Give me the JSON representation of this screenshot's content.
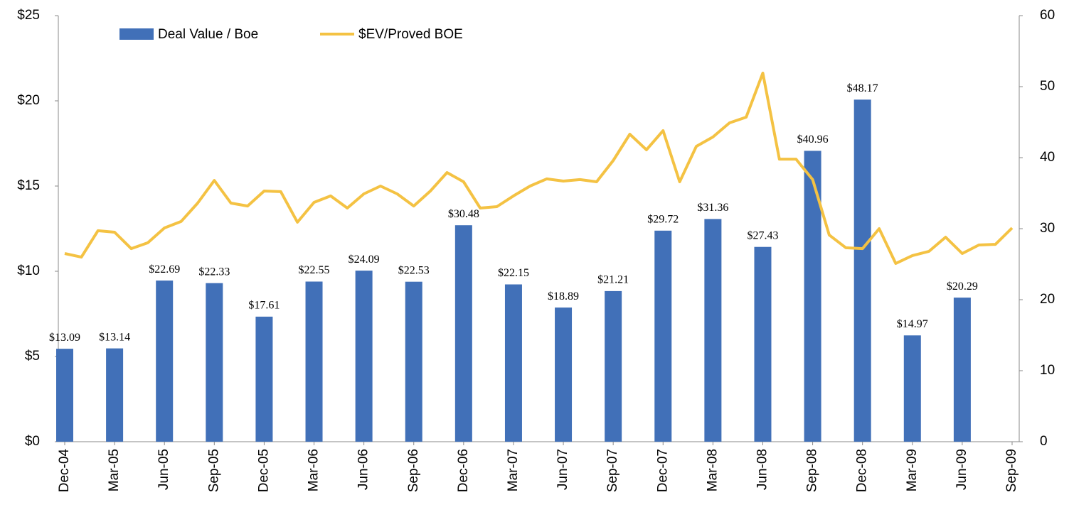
{
  "chart_data": {
    "type": "bar",
    "categories": [
      "Dec-04",
      null,
      null,
      "Mar-05",
      null,
      null,
      "Jun-05",
      null,
      null,
      "Sep-05",
      null,
      null,
      "Dec-05",
      null,
      null,
      "Mar-06",
      null,
      null,
      "Jun-06",
      null,
      null,
      "Sep-06",
      null,
      null,
      "Dec-06",
      null,
      null,
      "Mar-07",
      null,
      null,
      "Jun-07",
      null,
      null,
      "Sep-07",
      null,
      null,
      "Dec-07",
      null,
      null,
      "Mar-08",
      null,
      null,
      "Jun-08",
      null,
      null,
      "Sep-08",
      null,
      null,
      "Dec-08",
      null,
      null,
      "Mar-09",
      null,
      null,
      "Jun-09",
      null,
      null,
      "Sep-09"
    ],
    "series": [
      {
        "name": "Deal Value / Boe",
        "type": "bar",
        "axis": "y2",
        "color": "#4170b8",
        "values": [
          13.09,
          null,
          null,
          13.14,
          null,
          null,
          22.69,
          null,
          null,
          22.33,
          null,
          null,
          17.61,
          null,
          null,
          22.55,
          null,
          null,
          24.09,
          null,
          null,
          22.53,
          null,
          null,
          30.48,
          null,
          null,
          22.15,
          null,
          null,
          18.89,
          null,
          null,
          21.21,
          null,
          null,
          29.72,
          null,
          null,
          31.36,
          null,
          null,
          27.43,
          null,
          null,
          40.96,
          null,
          null,
          48.17,
          null,
          null,
          14.97,
          null,
          null,
          20.29,
          null,
          null,
          null
        ],
        "value_labels": [
          "$13.09",
          null,
          null,
          "$13.14",
          null,
          null,
          "$22.69",
          null,
          null,
          "$22.33",
          null,
          null,
          "$17.61",
          null,
          null,
          "$22.55",
          null,
          null,
          "$24.09",
          null,
          null,
          "$22.53",
          null,
          null,
          "$30.48",
          null,
          null,
          "$22.15",
          null,
          null,
          "$18.89",
          null,
          null,
          "$21.21",
          null,
          null,
          "$29.72",
          null,
          null,
          "$31.36",
          null,
          null,
          "$27.43",
          null,
          null,
          "$40.96",
          null,
          null,
          "$48.17",
          null,
          null,
          "$14.97",
          null,
          null,
          "$20.29",
          null,
          null,
          null
        ]
      },
      {
        "name": "$EV/Proved BOE",
        "type": "line",
        "color": "#f4c243",
        "values": [
          11.04,
          10.83,
          12.38,
          12.29,
          11.33,
          11.67,
          12.54,
          12.92,
          14.0,
          15.33,
          14.0,
          13.83,
          14.71,
          14.67,
          12.88,
          14.04,
          14.42,
          13.71,
          14.54,
          15.0,
          14.54,
          13.83,
          14.71,
          15.79,
          15.25,
          13.71,
          13.79,
          14.42,
          15.0,
          15.42,
          15.29,
          15.38,
          15.25,
          16.5,
          18.04,
          17.13,
          18.25,
          15.25,
          17.33,
          17.88,
          18.71,
          19.04,
          21.63,
          16.58,
          16.58,
          15.38,
          12.13,
          11.38,
          11.33,
          12.5,
          10.46,
          10.92,
          11.17,
          12.0,
          11.04,
          11.54,
          11.58,
          12.54
        ]
      }
    ],
    "ylim": [
      0,
      25
    ],
    "yticks": [
      {
        "value": 0,
        "label": "$0"
      },
      {
        "value": 5,
        "label": "$5"
      },
      {
        "value": 10,
        "label": "$10"
      },
      {
        "value": 15,
        "label": "$15"
      },
      {
        "value": 20,
        "label": "$20"
      },
      {
        "value": 25,
        "label": "$25"
      }
    ],
    "y2lim": [
      0,
      60
    ],
    "y2ticks": [
      0,
      10,
      20,
      30,
      40,
      50,
      60
    ],
    "legend": "top-left",
    "grid": false
  }
}
